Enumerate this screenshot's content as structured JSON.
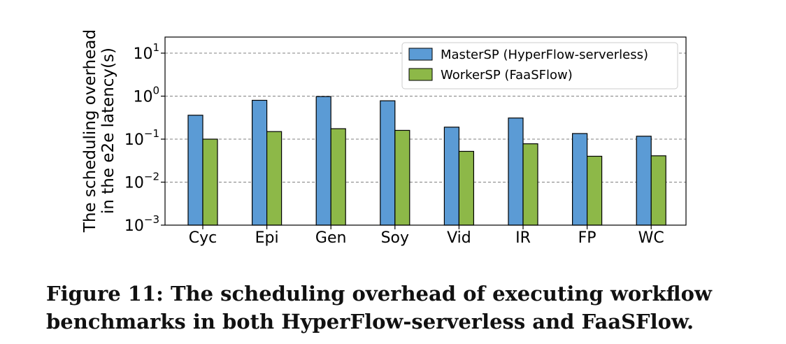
{
  "chart_data": {
    "type": "bar",
    "categories": [
      "Cyc",
      "Epi",
      "Gen",
      "Soy",
      "Vid",
      "IR",
      "FP",
      "WC"
    ],
    "series": [
      {
        "name": "MasterSP (HyperFlow-serverless)",
        "color": "#5b9bd5",
        "values": [
          0.36,
          0.8,
          0.98,
          0.78,
          0.19,
          0.31,
          0.135,
          0.117
        ]
      },
      {
        "name": "WorkerSP (FaaSFlow)",
        "color": "#8db848",
        "values": [
          0.1,
          0.15,
          0.175,
          0.16,
          0.052,
          0.078,
          0.04,
          0.041
        ]
      }
    ],
    "yscale": "log",
    "ylim": [
      0.001,
      20
    ],
    "yticks": [
      {
        "base": "10",
        "exp": "1"
      },
      {
        "base": "10",
        "exp": "0"
      },
      {
        "base": "10",
        "exp": "−1"
      },
      {
        "base": "10",
        "exp": "−2"
      },
      {
        "base": "10",
        "exp": "−3"
      }
    ],
    "ylabel_line1": "The scheduling overhead",
    "ylabel_line2": "in the e2e latency(s)",
    "xlabel": "",
    "grid": "horizontal dashed",
    "legend_position": "top-right"
  },
  "caption": "Figure 11: The scheduling overhead of executing workflow benchmarks in both HyperFlow-serverless and FaaSFlow."
}
